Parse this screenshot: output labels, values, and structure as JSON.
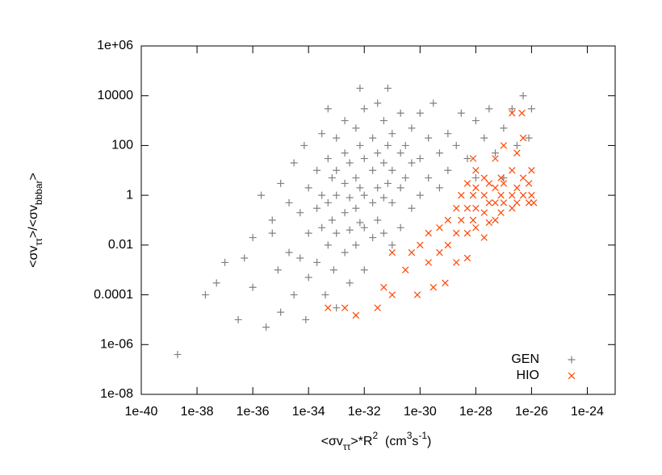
{
  "chart_data": {
    "type": "scatter",
    "x_label": [
      {
        "text": "<σv"
      },
      {
        "text": "ττ",
        "baseline": "sub"
      },
      {
        "text": ">*R"
      },
      {
        "text": "2",
        "baseline": "super"
      },
      {
        "text": "  (cm"
      },
      {
        "text": "3",
        "baseline": "super"
      },
      {
        "text": "s"
      },
      {
        "text": "-1",
        "baseline": "super"
      },
      {
        "text": ")"
      }
    ],
    "y_label": [
      {
        "text": "<σv"
      },
      {
        "text": "ττ",
        "baseline": "sub"
      },
      {
        "text": ">/<σv"
      },
      {
        "text": "bbbar",
        "baseline": "sub"
      },
      {
        "text": ">"
      }
    ],
    "log_x": true,
    "log_y": true,
    "xlim": [
      1e-40,
      1e-23
    ],
    "ylim": [
      1e-08,
      1000000.0
    ],
    "xticks": [
      {
        "value": 1e-40,
        "label": "1e-40"
      },
      {
        "value": 1e-38,
        "label": "1e-38"
      },
      {
        "value": 1e-36,
        "label": "1e-36"
      },
      {
        "value": 1e-34,
        "label": "1e-34"
      },
      {
        "value": 1e-32,
        "label": "1e-32"
      },
      {
        "value": 1e-30,
        "label": "1e-30"
      },
      {
        "value": 1e-28,
        "label": "1e-28"
      },
      {
        "value": 1e-26,
        "label": "1e-26"
      },
      {
        "value": 1e-24,
        "label": "1e-24"
      }
    ],
    "yticks": [
      {
        "value": 1e-08,
        "label": "1e-08"
      },
      {
        "value": 1e-06,
        "label": "1e-06"
      },
      0.0001,
      0.01,
      1,
      100,
      10000,
      {
        "value": 1000000.0,
        "label": "1e+06"
      }
    ],
    "grid": false,
    "legend": "bottom right",
    "series": [
      {
        "name": "GEN",
        "color": "#808080",
        "marker": "plus",
        "x": [
          2e-39,
          2e-38,
          5e-38,
          1e-37,
          3e-37,
          5e-37,
          1e-36,
          1e-36,
          2e-36,
          3e-36,
          5e-36,
          5e-36,
          8e-36,
          1e-35,
          1e-35,
          2e-35,
          2e-35,
          3e-35,
          3e-35,
          5e-35,
          5e-35,
          7e-35,
          8e-35,
          1e-34,
          1e-34,
          1e-34,
          2e-34,
          2e-34,
          2e-34,
          3e-34,
          3e-34,
          3e-34,
          4e-34,
          5e-34,
          5e-34,
          5e-34,
          5e-34,
          7e-34,
          7e-34,
          8e-34,
          1e-33,
          1e-33,
          1e-33,
          1e-33,
          1e-33,
          2e-33,
          2e-33,
          2e-33,
          2e-33,
          2e-33,
          3e-33,
          3e-33,
          3e-33,
          3e-33,
          5e-33,
          5e-33,
          5e-33,
          5e-33,
          7e-33,
          7e-33,
          7e-33,
          7e-33,
          1e-32,
          1e-32,
          1e-32,
          1e-32,
          1e-32,
          2e-32,
          2e-32,
          2e-32,
          2e-32,
          3e-32,
          3e-32,
          3e-32,
          3e-32,
          5e-32,
          5e-32,
          5e-32,
          5e-32,
          7e-32,
          7e-32,
          7e-32,
          1e-31,
          1e-31,
          1e-31,
          1e-31,
          2e-31,
          2e-31,
          2e-31,
          2e-31,
          3e-31,
          3e-31,
          5e-31,
          5e-31,
          5e-31,
          1e-30,
          1e-30,
          1e-30,
          2e-30,
          2e-30,
          3e-30,
          5e-30,
          5e-30,
          1e-29,
          1e-29,
          2e-29,
          3e-29,
          5e-29,
          1e-28,
          1e-28,
          2e-28,
          3e-28,
          5e-28,
          1e-27,
          1e-27,
          2e-27,
          3e-27,
          5e-27,
          8e-27,
          1e-26
        ],
        "values": [
          4e-07,
          0.0001,
          0.0003,
          0.002,
          1e-05,
          0.003,
          0.02,
          0.0002,
          1,
          5e-06,
          0.1,
          0.03,
          0.001,
          3,
          2e-05,
          0.5,
          0.005,
          20,
          0.0001,
          0.2,
          0.003,
          100,
          1e-05,
          2,
          0.03,
          0.0005,
          10,
          0.3,
          0.002,
          300,
          1,
          0.05,
          0.0001,
          3000,
          30,
          0.5,
          0.01,
          5,
          0.1,
          0.001,
          200,
          10,
          1,
          0.03,
          3e-05,
          1000,
          50,
          3,
          0.2,
          0.005,
          20,
          0.8,
          0.04,
          0.0003,
          500,
          5,
          0.3,
          0.01,
          20000,
          100,
          2,
          0.08,
          3000,
          30,
          1,
          0.05,
          0.001,
          200,
          10,
          0.5,
          0.02,
          5000,
          50,
          2,
          0.1,
          1000,
          20,
          0.8,
          0.03,
          20000,
          100,
          3,
          300,
          10,
          0.5,
          0.01,
          2000,
          50,
          2,
          0.05,
          100,
          5,
          500,
          20,
          0.3,
          2000,
          30,
          1,
          200,
          5,
          5000,
          50,
          2,
          300,
          10,
          100,
          2000,
          30,
          1000,
          5,
          200,
          3000,
          50,
          500,
          5,
          3000,
          100,
          10000,
          200,
          3000
        ]
      },
      {
        "name": "HIO",
        "color": "#ff4500",
        "marker": "cross",
        "x": [
          5e-34,
          2e-33,
          5e-33,
          3e-32,
          1e-31,
          5e-32,
          1e-31,
          3e-31,
          5e-31,
          8e-31,
          1e-30,
          2e-30,
          2e-30,
          3e-30,
          5e-30,
          5e-30,
          8e-30,
          1e-29,
          1e-29,
          2e-29,
          2e-29,
          2e-29,
          3e-29,
          3e-29,
          5e-29,
          5e-29,
          5e-29,
          5e-29,
          8e-29,
          8e-29,
          8e-29,
          1e-28,
          1e-28,
          1e-28,
          1e-28,
          2e-28,
          2e-28,
          2e-28,
          2e-28,
          3e-28,
          3e-28,
          3e-28,
          5e-28,
          5e-28,
          5e-28,
          5e-28,
          8e-28,
          8e-28,
          8e-28,
          1e-27,
          1e-27,
          1e-27,
          2e-27,
          2e-27,
          2e-27,
          2e-27,
          3e-27,
          3e-27,
          3e-27,
          4.5e-27,
          5e-27,
          5e-27,
          5e-27,
          8e-27,
          8e-27,
          1e-26,
          1e-26,
          1.2e-26
        ],
        "values": [
          3e-05,
          3e-05,
          1.5e-05,
          3e-05,
          0.0001,
          0.0002,
          0.005,
          0.001,
          0.005,
          0.0001,
          0.01,
          0.03,
          0.002,
          0.0002,
          0.05,
          0.005,
          0.0003,
          0.1,
          0.01,
          0.3,
          0.03,
          0.002,
          1,
          0.1,
          3,
          0.3,
          0.03,
          0.003,
          30,
          1,
          0.1,
          10,
          2,
          0.3,
          0.05,
          5,
          1,
          0.2,
          0.02,
          3,
          0.5,
          0.08,
          30,
          2,
          0.5,
          0.1,
          5,
          1,
          0.2,
          100,
          3,
          0.5,
          2000,
          10,
          1,
          0.3,
          50,
          2,
          0.5,
          2000,
          200,
          5,
          1,
          3,
          0.5,
          10,
          1,
          0.5
        ]
      }
    ]
  }
}
